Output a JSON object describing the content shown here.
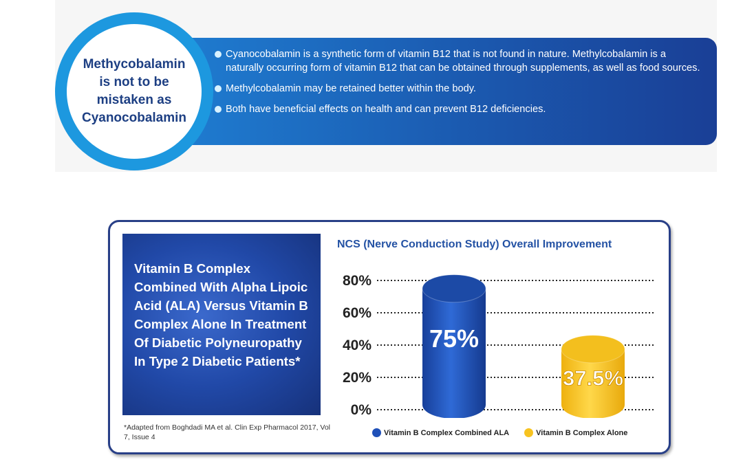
{
  "top_panel": {
    "circle_text_lines": [
      "Methycobalamin",
      "is not to be",
      "mistaken as",
      "Cyanocobalamin"
    ],
    "bullets": [
      "Cyanocobalamin is a synthetic form of vitamin B12 that is not found in nature. Methylcobalamin is a naturally occurring form of vitamin B12 that can be obtained through supplements, as well as food sources.",
      "Methylcobalamin may be retained better within the body.",
      "Both have beneficial effects on health and can prevent B12 deficiencies."
    ]
  },
  "study": {
    "title": "Vitamin B Complex Combined With Alpha Lipoic Acid (ALA) Versus Vitamin B Complex Alone In Treatment Of Diabetic Polyneuropathy In Type 2 Diabetic Patients*",
    "footnote": "*Adapted from Boghdadi MA et al. Clin Exp Pharmacol 2017, Vol 7, Issue 4"
  },
  "colors": {
    "blue_bar": "#1f50b8",
    "yellow_bar": "#f7c320",
    "title_blue": "#2452a4"
  },
  "chart_data": {
    "type": "bar",
    "title": "NCS (Nerve Conduction Study) Overall Improvement",
    "categories": [
      "Vitamin B Complex Combined ALA",
      "Vitamin B Complex Alone"
    ],
    "values": [
      75,
      37.5
    ],
    "value_labels": [
      "75%",
      "37.5%"
    ],
    "ylim": [
      0,
      80
    ],
    "yticks": [
      "0%",
      "20%",
      "40%",
      "60%",
      "80%"
    ],
    "ytick_values": [
      0,
      20,
      40,
      60,
      80
    ],
    "legend": [
      {
        "label": "Vitamin B Complex Combined ALA",
        "color": "#1f50b8"
      },
      {
        "label": "Vitamin B Complex Alone",
        "color": "#f7c320"
      }
    ],
    "xlabel": "",
    "ylabel": "",
    "grid": "dotted"
  }
}
